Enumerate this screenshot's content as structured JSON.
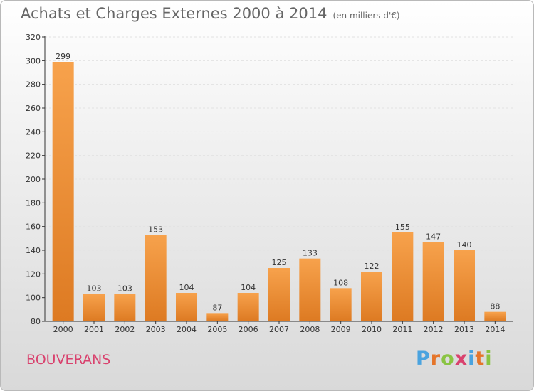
{
  "header": {
    "title": "Achats et Charges Externes 2000 à 2014",
    "unit": "(en milliers d'€)"
  },
  "footer": {
    "commune": "BOUVERANS",
    "logo": [
      "P",
      "r",
      "o",
      "x",
      "i",
      "t",
      "i"
    ]
  },
  "colors": {
    "bar_light": "#f7a24c",
    "bar_dark": "#dd7a22",
    "commune": "#d9426e",
    "logo": [
      "#4aa3df",
      "#e5752a",
      "#8ac443",
      "#d9426e",
      "#4aa3df",
      "#e5752a",
      "#8ac443"
    ]
  },
  "chart_data": {
    "type": "bar",
    "title": "Achats et Charges Externes 2000 à 2014",
    "subtitle": "(en milliers d'€)",
    "categories": [
      "2000",
      "2001",
      "2002",
      "2003",
      "2004",
      "2005",
      "2006",
      "2007",
      "2008",
      "2009",
      "2010",
      "2011",
      "2012",
      "2013",
      "2014"
    ],
    "values": [
      299,
      103,
      103,
      153,
      104,
      87,
      104,
      125,
      133,
      108,
      122,
      155,
      147,
      140,
      88
    ],
    "ylim": [
      80,
      320
    ],
    "yticks": [
      80,
      100,
      120,
      140,
      160,
      180,
      200,
      220,
      240,
      260,
      280,
      300,
      320
    ],
    "grid": true
  }
}
